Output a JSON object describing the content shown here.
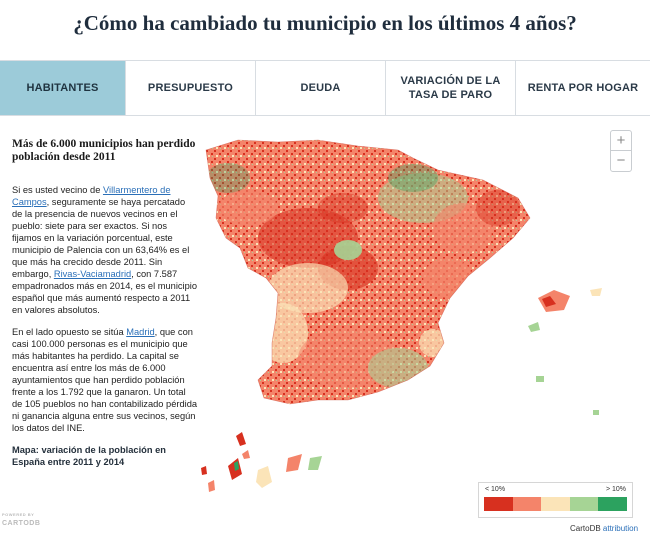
{
  "page": {
    "title": "¿Cómo ha cambiado tu municipio en los últimos 4 años?"
  },
  "tabs": [
    {
      "label": "HABITANTES",
      "active": true
    },
    {
      "label": "PRESUPUESTO",
      "active": false
    },
    {
      "label": "DEUDA",
      "active": false
    },
    {
      "label": "VARIACIÓN DE LA TASA DE PARO",
      "active": false
    },
    {
      "label": "RENTA POR HOGAR",
      "active": false
    }
  ],
  "panel": {
    "heading": "Más de 6.000 municipios han perdido población desde 2011",
    "p1_a": "Si es usted vecino de ",
    "p1_link1": "Villarmentero de Campos",
    "p1_b": ", seguramente se haya percatado de la presencia de nuevos vecinos en el pueblo: siete para ser exactos. Si nos fijamos en la variación porcentual, este municipio de Palencia con un 63,64% es el que más ha crecido desde 2011. Sin embargo, ",
    "p1_link2": "Rivas-Vaciamadrid",
    "p1_c": ", con 7.587 empadronados más en 2014, es el municipio español que más aumentó respecto a 2011 en valores absolutos.",
    "p2_a": "En el lado opuesto se sitúa ",
    "p2_link": "Madrid",
    "p2_b": ", que con casi 100.000 personas es el municipio que más habitantes ha perdido. La capital se encuentra así entre los más de 6.000 ayuntamientos que han perdido población frente a los 1.792 que la ganaron. Un total de 105 pueblos no han contabilizado pérdida ni ganancia alguna entre sus vecinos, según los datos del INE.",
    "map_title": "Mapa: variación de la población en España entre 2011 y 2014"
  },
  "zoom": {
    "in": "+",
    "out": "−"
  },
  "legend": {
    "low_label": "< 10%",
    "high_label": "> 10%",
    "colors": [
      "#d7301f",
      "#f4846a",
      "#fbe4b8",
      "#a6d495",
      "#2ca25f"
    ]
  },
  "attribution": {
    "prefix": "CartoDB ",
    "link": "attribution"
  },
  "logo": {
    "line1": "POWERED BY",
    "line2": "CARTODB"
  },
  "colors": {
    "active_tab": "#9ccbd9",
    "loss_strong": "#d7301f",
    "loss": "#f4846a",
    "stable": "#fbe4b8",
    "gain": "#a6d495",
    "gain_strong": "#2ca25f"
  }
}
